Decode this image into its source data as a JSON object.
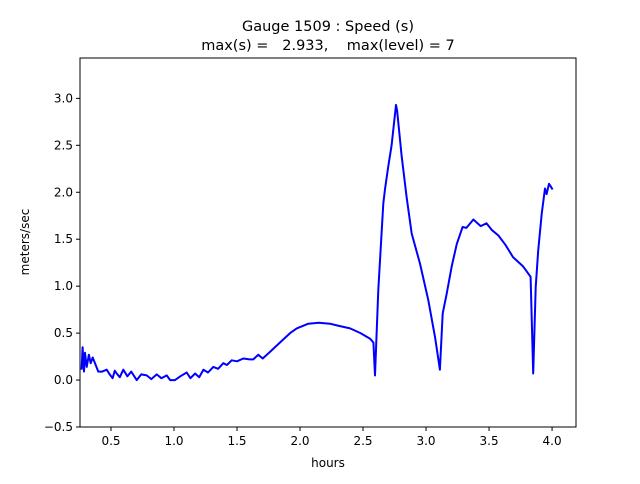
{
  "chart_data": {
    "type": "line",
    "title": "Gauge 1509 : Speed (s)",
    "subtitle": "max(s) =   2.933,    max(level) = 7",
    "xlabel": "hours",
    "ylabel": "meters/sec",
    "xlim": [
      0.254,
      4.19
    ],
    "ylim": [
      -0.5,
      3.43
    ],
    "xticks": [
      "0.5",
      "1.0",
      "1.5",
      "2.0",
      "2.5",
      "3.0",
      "3.5",
      "4.0"
    ],
    "yticks": [
      "−0.5",
      "0.0",
      "0.5",
      "1.0",
      "1.5",
      "2.0",
      "2.5",
      "3.0"
    ],
    "grid": false,
    "series": [
      {
        "color": "#0000ff",
        "x": [
          0.267,
          0.275,
          0.286,
          0.294,
          0.307,
          0.325,
          0.339,
          0.355,
          0.373,
          0.399,
          0.43,
          0.466,
          0.49,
          0.513,
          0.53,
          0.545,
          0.57,
          0.598,
          0.63,
          0.66,
          0.704,
          0.74,
          0.783,
          0.82,
          0.863,
          0.9,
          0.942,
          0.97,
          1.008,
          1.05,
          1.101,
          1.13,
          1.167,
          1.2,
          1.233,
          1.27,
          1.312,
          1.35,
          1.391,
          1.42,
          1.458,
          1.5,
          1.55,
          1.6,
          1.629,
          1.669,
          1.704,
          1.762,
          1.841,
          1.921,
          1.974,
          2.066,
          2.15,
          2.238,
          2.3,
          2.397,
          2.48,
          2.556,
          2.582,
          2.595,
          2.621,
          2.661,
          2.675,
          2.7,
          2.727,
          2.762,
          2.77,
          2.806,
          2.846,
          2.886,
          2.952,
          3.018,
          3.071,
          3.11,
          3.132,
          3.164,
          3.204,
          3.244,
          3.29,
          3.32,
          3.376,
          3.4,
          3.434,
          3.48,
          3.52,
          3.574,
          3.63,
          3.69,
          3.77,
          3.83,
          3.85,
          3.87,
          3.89,
          3.918,
          3.944,
          3.957,
          3.976,
          3.99,
          4.004
        ],
        "y": [
          0.11,
          0.35,
          0.09,
          0.29,
          0.14,
          0.27,
          0.18,
          0.24,
          0.18,
          0.09,
          0.09,
          0.11,
          0.06,
          0.02,
          0.1,
          0.07,
          0.03,
          0.11,
          0.04,
          0.09,
          0.0,
          0.06,
          0.05,
          0.01,
          0.06,
          0.02,
          0.05,
          0.0,
          0.0,
          0.04,
          0.08,
          0.02,
          0.07,
          0.03,
          0.11,
          0.08,
          0.14,
          0.12,
          0.18,
          0.16,
          0.21,
          0.2,
          0.23,
          0.22,
          0.22,
          0.27,
          0.23,
          0.3,
          0.4,
          0.5,
          0.55,
          0.6,
          0.61,
          0.6,
          0.58,
          0.55,
          0.5,
          0.44,
          0.4,
          0.05,
          0.96,
          1.88,
          2.04,
          2.27,
          2.5,
          2.93,
          2.87,
          2.39,
          1.95,
          1.56,
          1.24,
          0.85,
          0.46,
          0.11,
          0.71,
          0.92,
          1.21,
          1.45,
          1.63,
          1.62,
          1.71,
          1.68,
          1.64,
          1.67,
          1.6,
          1.54,
          1.44,
          1.31,
          1.21,
          1.1,
          0.07,
          0.99,
          1.38,
          1.77,
          2.04,
          1.98,
          2.09,
          2.06,
          2.03
        ]
      }
    ]
  }
}
